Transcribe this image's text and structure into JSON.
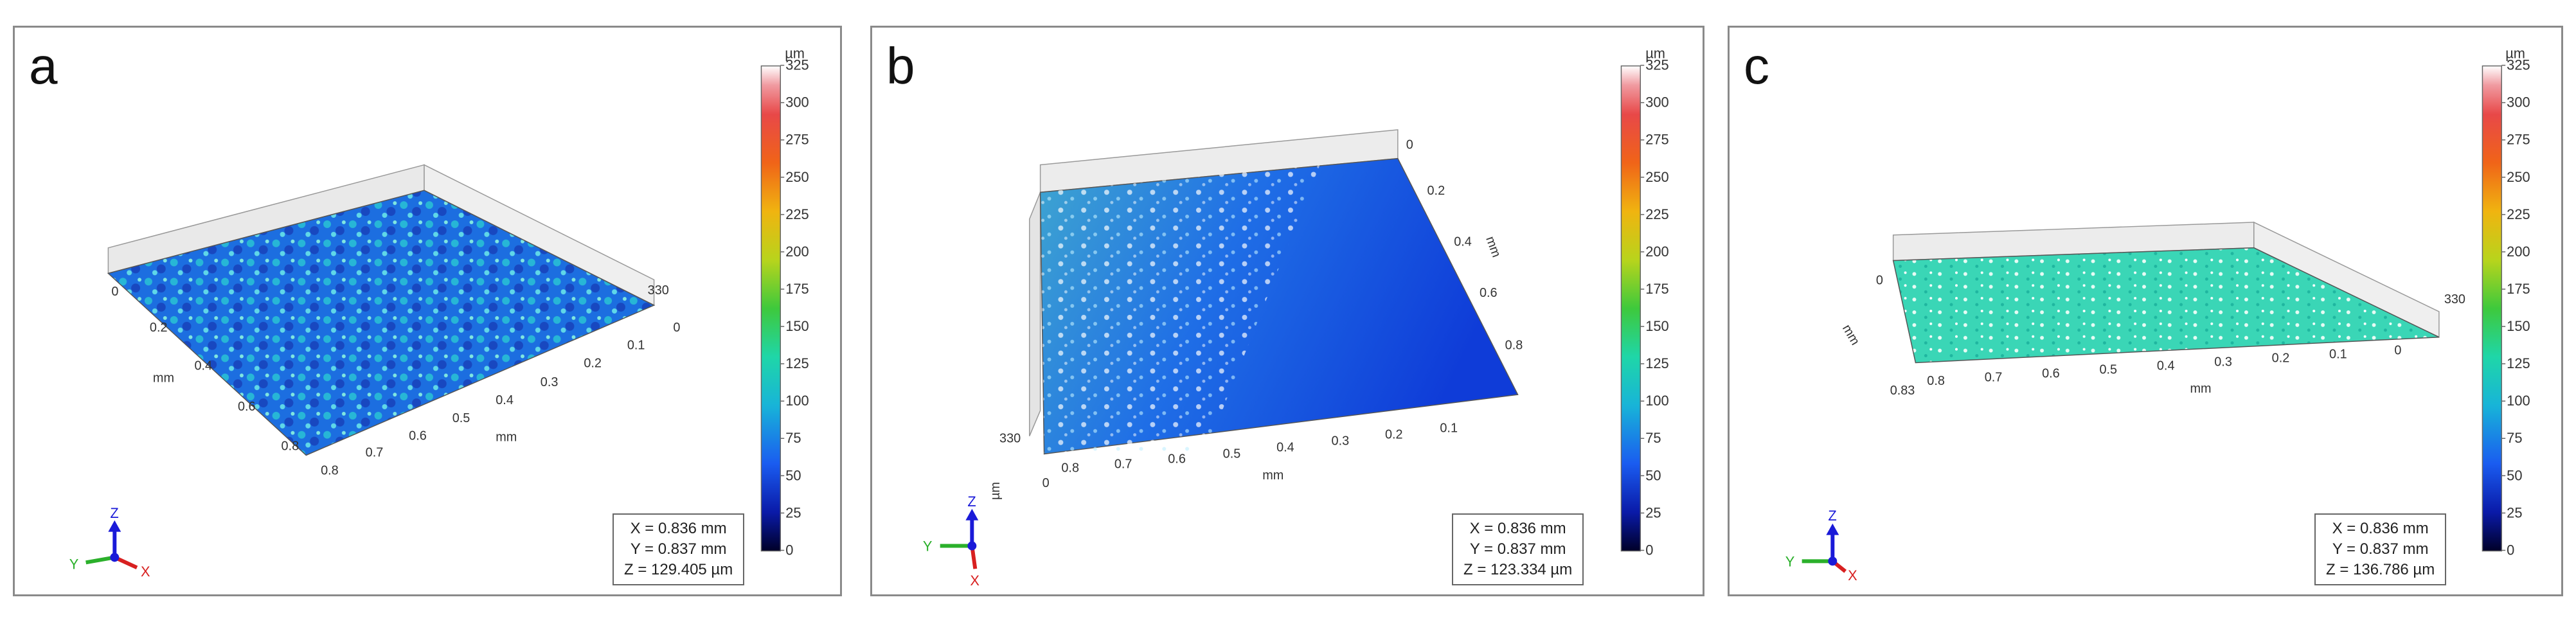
{
  "colorbar": {
    "unit": "µm",
    "ticks": [
      "325",
      "300",
      "275",
      "250",
      "225",
      "200",
      "175",
      "150",
      "125",
      "100",
      "75",
      "50",
      "25",
      "0"
    ],
    "stops": [
      "#000028",
      "#0a1aa8",
      "#1a5cf0",
      "#18b4d8",
      "#1fd6a8",
      "#3ec93c",
      "#b8d41c",
      "#f0b410",
      "#f06418",
      "#e84848",
      "#f09aa0",
      "#ffffff"
    ]
  },
  "axis_icons": {
    "z": "Z",
    "y": "Y",
    "x": "X"
  },
  "panels": [
    {
      "letter": "a",
      "readout": {
        "x": "X = 0.836 mm",
        "y": "Y = 0.837 mm",
        "z": "Z = 129.405 µm"
      },
      "surface_color": "#1f78d8",
      "labels": {
        "z_top": "330",
        "mm_x": "mm",
        "mm_y": "mm",
        "x_ticks": [
          "0.8",
          "0.7",
          "0.6",
          "0.5",
          "0.4",
          "0.3",
          "0.2",
          "0.1",
          "0"
        ],
        "y_ticks": [
          "0",
          "0.2",
          "0.4",
          "0.6",
          "0.8"
        ]
      }
    },
    {
      "letter": "b",
      "readout": {
        "x": "X = 0.836 mm",
        "y": "Y = 0.837 mm",
        "z": "Z = 123.334 µm"
      },
      "surface_color": "#1a4fe0",
      "labels": {
        "z_top": "330",
        "mm_x": "mm",
        "mm_y": "mm",
        "um": "µm",
        "x_ticks": [
          "0",
          "0.8",
          "0.7",
          "0.6",
          "0.5",
          "0.4",
          "0.3",
          "0.2",
          "0.1"
        ],
        "y_ticks": [
          "0",
          "0.2",
          "0.4",
          "0.6",
          "0.8"
        ]
      }
    },
    {
      "letter": "c",
      "readout": {
        "x": "X = 0.836 mm",
        "y": "Y = 0.837 mm",
        "z": "Z = 136.786 µm"
      },
      "surface_color": "#36d6b4",
      "labels": {
        "z_top": "330",
        "mm_x": "mm",
        "mm_y": "mm",
        "x_ticks": [
          "0.8",
          "0.7",
          "0.6",
          "0.5",
          "0.4",
          "0.3",
          "0.2",
          "0.1",
          "0"
        ],
        "y_ticks": [
          "0",
          "0.83"
        ]
      }
    }
  ]
}
